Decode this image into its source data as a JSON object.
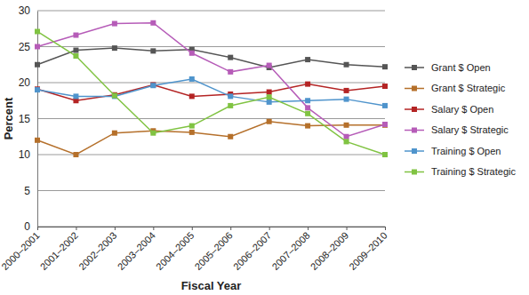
{
  "chart_data": {
    "type": "line",
    "x_label": "Fiscal Year",
    "y_label": "Percent",
    "categories": [
      "2000–2001",
      "2001–2002",
      "2002–2003",
      "2003–2004",
      "2004–2005",
      "2005–2006",
      "2006–2007",
      "2007–2008",
      "2008–2009",
      "2009–2010"
    ],
    "series": [
      {
        "name": "Grant $ Open",
        "color": "#555555",
        "values": [
          22.5,
          24.5,
          24.8,
          24.4,
          24.6,
          23.5,
          22.1,
          23.2,
          22.5,
          22.2
        ]
      },
      {
        "name": "Grant $ Strategic",
        "color": "#b5702b",
        "values": [
          12,
          10,
          13,
          13.3,
          13.1,
          12.5,
          14.6,
          14,
          14.1,
          14.1
        ]
      },
      {
        "name": "Salary $ Open",
        "color": "#b42424",
        "values": [
          19.1,
          17.5,
          18.3,
          19.7,
          18.1,
          18.4,
          18.7,
          19.8,
          18.9,
          19.5
        ]
      },
      {
        "name": "Salary $ Strategic",
        "color": "#b65cb8",
        "values": [
          25,
          26.6,
          28.2,
          28.3,
          24.1,
          21.5,
          22.4,
          16.5,
          12.5,
          14.2
        ]
      },
      {
        "name": "Training $ Open",
        "color": "#4f94cc",
        "values": [
          19,
          18.1,
          18.1,
          19.6,
          20.5,
          18.1,
          17.3,
          17.5,
          17.7,
          16.8
        ]
      },
      {
        "name": "Training $ Strategic",
        "color": "#80c342",
        "values": [
          27.1,
          23.7,
          18.2,
          13,
          14,
          16.8,
          18,
          15.7,
          11.8,
          10
        ]
      }
    ],
    "ylim": [
      0,
      30
    ],
    "yticks": [
      0,
      5,
      10,
      15,
      20,
      25,
      30
    ],
    "grid": true,
    "legend": "right",
    "marker": "square"
  }
}
